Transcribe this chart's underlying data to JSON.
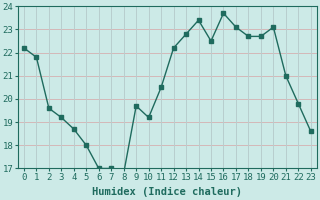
{
  "x": [
    0,
    1,
    2,
    3,
    4,
    5,
    6,
    7,
    8,
    9,
    10,
    11,
    12,
    13,
    14,
    15,
    16,
    17,
    18,
    19,
    20,
    21,
    22,
    23
  ],
  "y": [
    22.2,
    21.8,
    19.6,
    19.2,
    18.7,
    18.0,
    17.0,
    17.0,
    16.8,
    19.7,
    19.2,
    20.5,
    22.2,
    22.8,
    23.4,
    22.5,
    23.7,
    23.1,
    22.7,
    22.7,
    23.1,
    21.0,
    19.8,
    18.6
  ],
  "line_color": "#1f6b5e",
  "bg_color": "#cceae7",
  "grid_color_h": "#d4b8b8",
  "grid_color_v": "#b8cece",
  "xlabel": "Humidex (Indice chaleur)",
  "ylim": [
    17,
    24
  ],
  "xlim": [
    -0.5,
    23.5
  ],
  "yticks": [
    17,
    18,
    19,
    20,
    21,
    22,
    23,
    24
  ],
  "xticks": [
    0,
    1,
    2,
    3,
    4,
    5,
    6,
    7,
    8,
    9,
    10,
    11,
    12,
    13,
    14,
    15,
    16,
    17,
    18,
    19,
    20,
    21,
    22,
    23
  ],
  "xlabel_fontsize": 7.5,
  "tick_fontsize": 6.5,
  "marker_size": 2.5,
  "line_width": 1.0
}
